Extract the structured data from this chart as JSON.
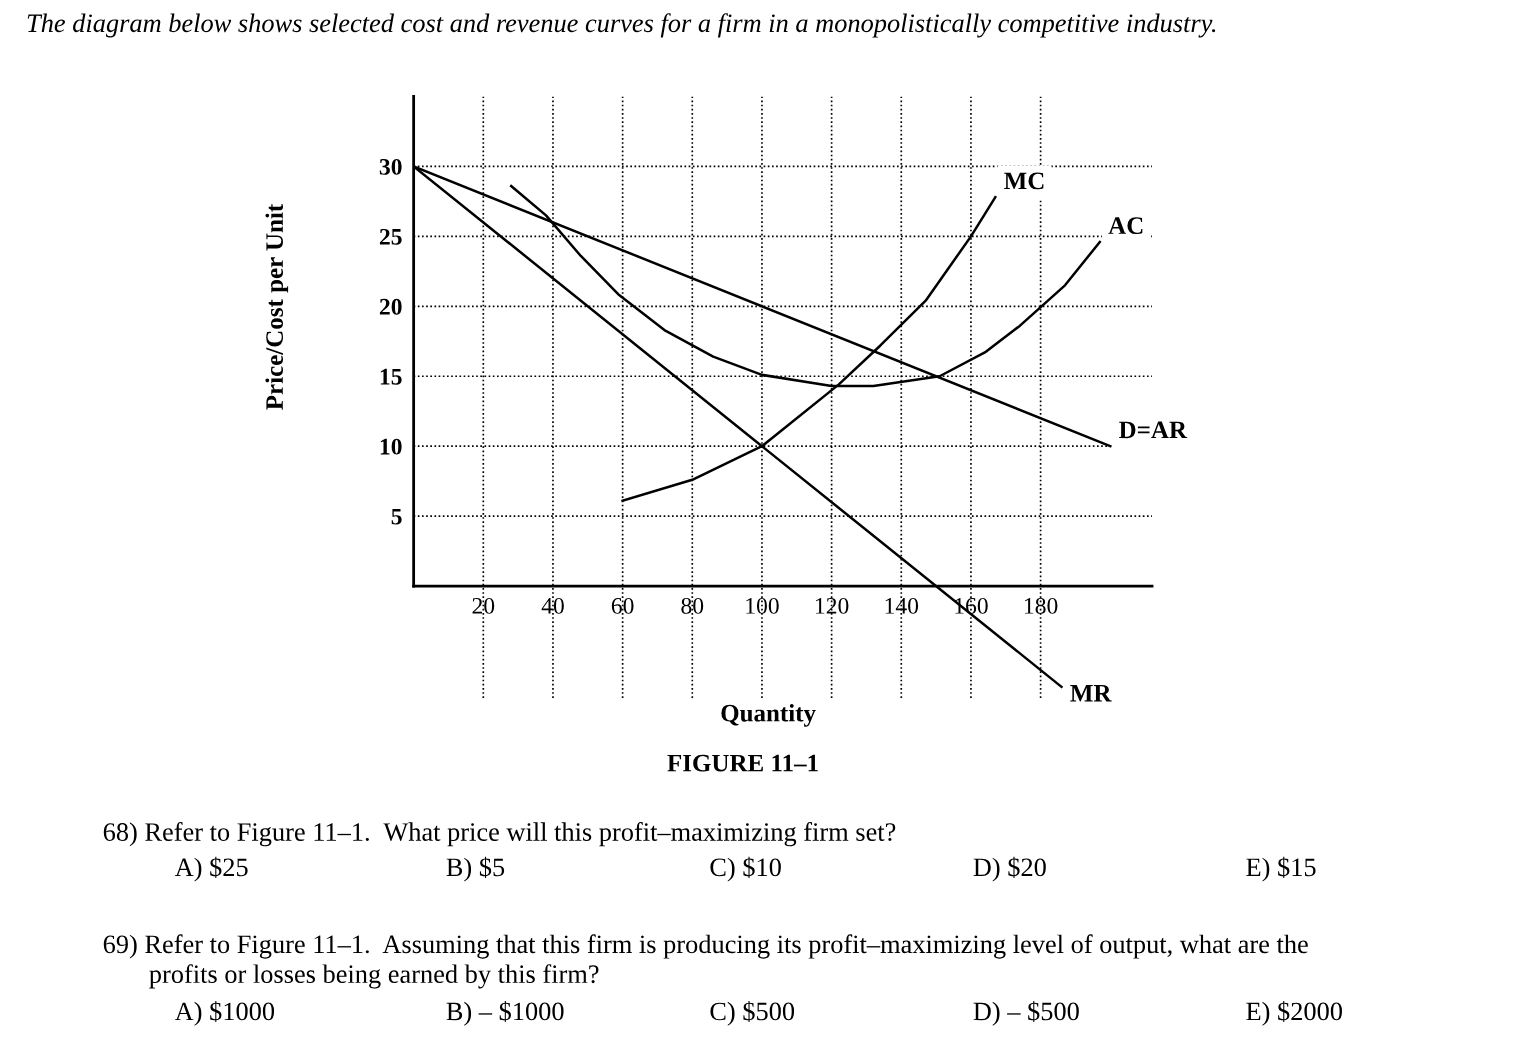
{
  "chart_data": {
    "type": "line",
    "title": "The diagram below shows selected cost and revenue curves for a firm in a monopolistically competitive industry.",
    "xlabel": "Quantity",
    "ylabel": "Price/Cost per Unit",
    "xlim": [
      0,
      212
    ],
    "ylim": [
      -8,
      35
    ],
    "xticks": [
      20,
      40,
      60,
      80,
      100,
      120,
      140,
      160,
      180
    ],
    "yticks": [
      5,
      10,
      15,
      20,
      25,
      30
    ],
    "grid": true,
    "legend": false,
    "marker": "none",
    "line_style": "solid",
    "series": [
      {
        "name": "MC",
        "color": "#000000",
        "x": [
          60,
          80,
          100,
          122,
          134,
          147,
          160,
          167
        ],
        "values": [
          6.1,
          7.6,
          10,
          14.4,
          17.2,
          20.4,
          25,
          27.8
        ]
      },
      {
        "name": "AC",
        "color": "#000000",
        "x": [
          28,
          38,
          48,
          59,
          72,
          86,
          100,
          120,
          132,
          151,
          164,
          174,
          187,
          197
        ],
        "values": [
          28.6,
          26.5,
          23.6,
          20.8,
          18.3,
          16.4,
          15.1,
          14.3,
          14.3,
          15,
          16.7,
          18.6,
          21.5,
          24.6
        ]
      },
      {
        "name": "D=AR",
        "color": "#000000",
        "x": [
          0,
          200
        ],
        "values": [
          30,
          10
        ]
      },
      {
        "name": "MR",
        "color": "#000000",
        "x": [
          0,
          186
        ],
        "values": [
          30,
          -7.2
        ]
      }
    ],
    "annotations": [
      "FIGURE 11–1",
      "68) Refer to Figure 11–1.  What price will this profit–maximizing firm set?",
      "A) $25",
      "B) $5",
      "C) $10",
      "D) $20",
      "E) $15",
      "69) Refer to Figure 11–1.  Assuming that this firm is producing its profit–maximizing level of output, what are the\n       profits or losses being earned by this firm?",
      "A) $1000",
      "B) – $1000",
      "C) $500",
      "D) – $500",
      "E) $2000"
    ]
  }
}
